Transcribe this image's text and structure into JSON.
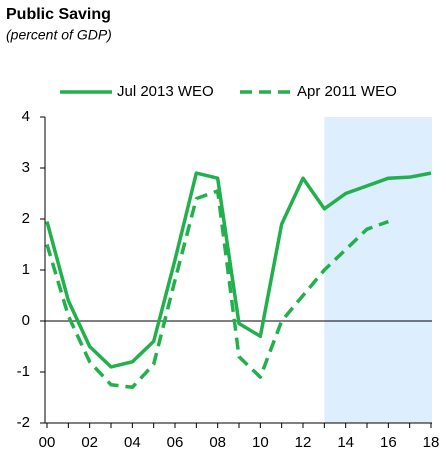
{
  "chart_data": {
    "type": "line",
    "title": "Public Saving",
    "subtitle": "(percent of GDP)",
    "categories": [
      "00",
      null,
      "02",
      null,
      "04",
      null,
      "06",
      null,
      "08",
      null,
      "10",
      null,
      "12",
      null,
      "14",
      null,
      "16",
      null,
      "18"
    ],
    "series": [
      {
        "name": "Jul 2013 WEO",
        "color": "#22b04c",
        "dash": false,
        "values": [
          1.95,
          0.4,
          -0.5,
          -0.9,
          -0.8,
          -0.4,
          1.2,
          2.9,
          2.8,
          -0.05,
          -0.3,
          1.9,
          2.8,
          2.2,
          2.5,
          2.65,
          2.8,
          2.82,
          2.9
        ]
      },
      {
        "name": "Apr 2011 WEO",
        "color": "#22b04c",
        "dash": true,
        "values": [
          1.5,
          0.1,
          -0.8,
          -1.25,
          -1.3,
          -0.85,
          0.8,
          2.4,
          2.55,
          -0.7,
          -1.1,
          0,
          0.5,
          1.0,
          1.4,
          1.8,
          1.95,
          null,
          null
        ]
      }
    ],
    "ylim": [
      -2,
      4
    ],
    "yticks": [
      -2,
      -1,
      0,
      1,
      2,
      3,
      4
    ],
    "zero_line": true,
    "shade": {
      "from": 13,
      "to": 18,
      "color": "#ddeeff"
    }
  }
}
